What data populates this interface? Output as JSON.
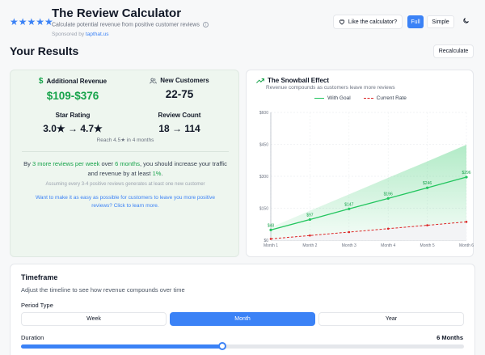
{
  "header": {
    "stars": "★★★★★",
    "title": "The Review Calculator",
    "subtitle": "Calculate potential revenue from positive customer reviews",
    "sponsor_prefix": "Sponsored by ",
    "sponsor_link": "tapthat.us",
    "like_label": "Like the calculator?",
    "mode_full": "Full",
    "mode_simple": "Simple",
    "theme_icon": "moon-icon"
  },
  "results": {
    "title": "Your Results",
    "recalculate": "Recalculate",
    "additional_revenue_label": "Additional Revenue",
    "additional_revenue_value": "$109-$376",
    "new_customers_label": "New Customers",
    "new_customers_value": "22-75",
    "star_rating_label": "Star Rating",
    "star_rating_value": "3.0★ → 4.7★",
    "review_count_label": "Review Count",
    "review_count_value": "18 → 114",
    "reach": "Reach 4.5★ in 4 months",
    "stmt_pre": "By ",
    "stmt_reviews": "3 more reviews per week",
    "stmt_mid": " over ",
    "stmt_months": "6 months",
    "stmt_post": ", you should increase your traffic and revenue by at least ",
    "stmt_pct": "1%",
    "stmt_end": ".",
    "assumption": "Assuming every 3-4 positive reviews generates at least one new customer",
    "learn_more": "Want to make it as easy as possible for customers to leave you more positive reviews? Click to learn more.",
    "colors": {
      "green": "#16a34a",
      "blue": "#3b82f6"
    }
  },
  "chart_data": {
    "type": "line",
    "title": "The Snowball Effect",
    "subtitle": "Revenue compounds as customers leave more reviews",
    "categories": [
      "Month 1",
      "Month 2",
      "Month 3",
      "Month 4",
      "Month 5",
      "Month 6"
    ],
    "series": [
      {
        "name": "With Goal",
        "color": "#22c55e",
        "values": [
          48,
          97,
          147,
          196,
          246,
          296
        ],
        "labels": [
          "$48",
          "$97",
          "$147",
          "$196",
          "$246",
          "$296"
        ],
        "band_upper": [
          60,
          138,
          215,
          293,
          370,
          448
        ]
      },
      {
        "name": "Current Rate",
        "color": "#dc2626",
        "dashed": true,
        "values": [
          6,
          22,
          38,
          54,
          70,
          86
        ]
      }
    ],
    "y_ticks": [
      "$0",
      "$150",
      "$300",
      "$450",
      "$600"
    ],
    "ylim": [
      0,
      600
    ],
    "grid": true,
    "legend": "top-center"
  },
  "timeframe": {
    "title": "Timeframe",
    "subtitle": "Adjust the timeline to see how revenue compounds over time",
    "period_label": "Period Type",
    "period_options": [
      "Week",
      "Month",
      "Year"
    ],
    "period_selected": "Month",
    "duration_label": "Duration",
    "duration_value": "6 Months",
    "duration_fraction": 0.455
  }
}
